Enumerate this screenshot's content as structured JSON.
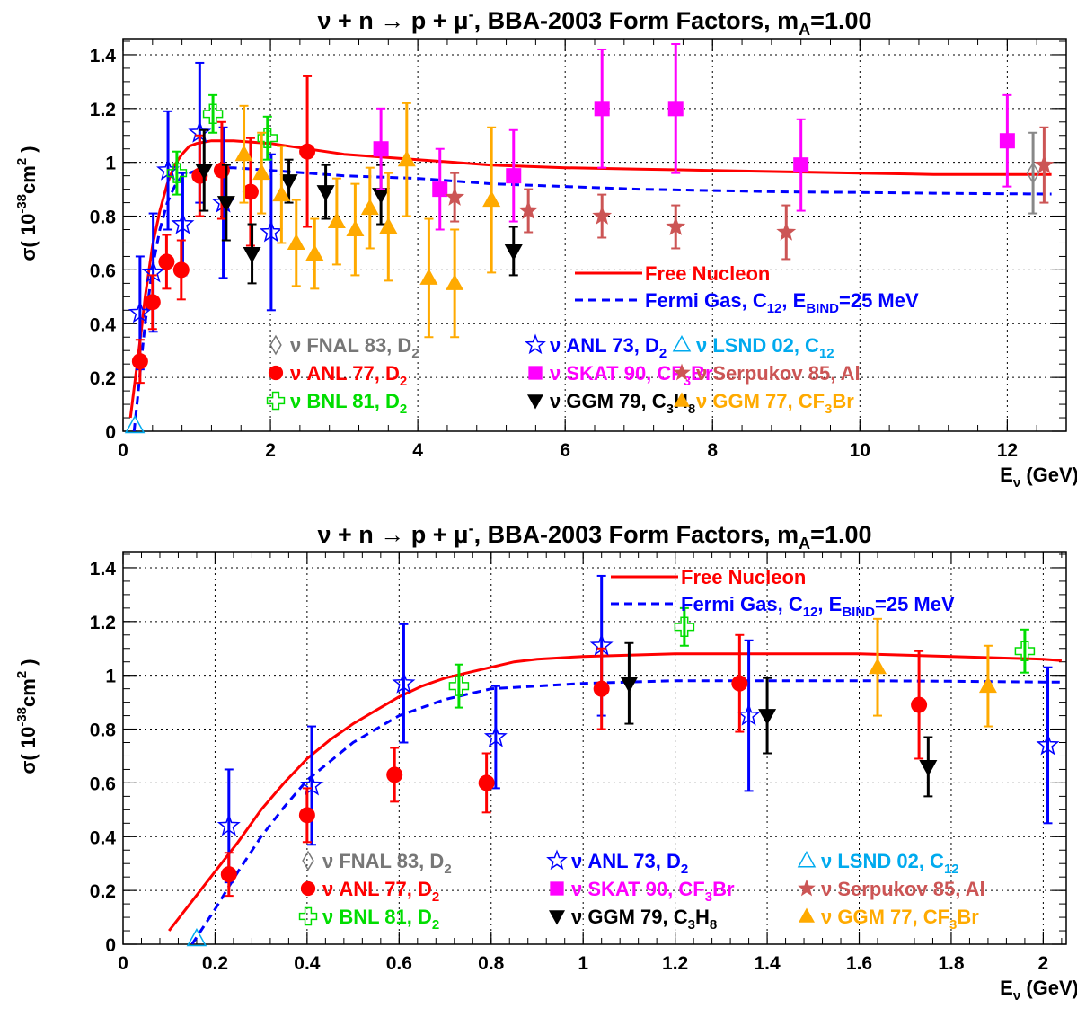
{
  "chart_data": [
    {
      "type": "scatter",
      "title": {
        "pre": "ν + n → p + μ",
        "sup": "-",
        "mid": ", BBA-2003 Form Factors, m",
        "sub": "A",
        "post": "=1.00"
      },
      "xlabel": {
        "main": "E",
        "sub": "ν",
        "post": " (GeV)"
      },
      "ylabel": {
        "pre": "σ( 10",
        "sup1": "-38",
        "mid": "cm",
        "sup2": "2",
        "post": " )"
      },
      "xlim": [
        0,
        12.8
      ],
      "ylim": [
        0,
        1.46
      ],
      "xticks": [
        0,
        2,
        4,
        6,
        8,
        10,
        12
      ],
      "yticks": [
        0,
        0.2,
        0.4,
        0.6,
        0.8,
        1,
        1.2,
        1.4
      ],
      "grid": true,
      "curves": [
        {
          "name": "Free Nucleon",
          "color": "#ff0000",
          "style": "solid",
          "x": [
            0.1,
            0.15,
            0.2,
            0.25,
            0.3,
            0.4,
            0.5,
            0.6,
            0.7,
            0.8,
            0.9,
            1.0,
            1.2,
            1.5,
            2.0,
            2.5,
            3.0,
            4.0,
            5.0,
            6.0,
            7.0,
            8.0,
            9.0,
            10.0,
            11.0,
            12.0,
            12.6
          ],
          "y": [
            0.05,
            0.16,
            0.27,
            0.38,
            0.5,
            0.69,
            0.82,
            0.92,
            0.99,
            1.03,
            1.06,
            1.07,
            1.08,
            1.08,
            1.07,
            1.05,
            1.03,
            1.01,
            0.99,
            0.98,
            0.975,
            0.97,
            0.965,
            0.96,
            0.955,
            0.955,
            0.955
          ]
        },
        {
          "name": "Fermi Gas, C12, EBIND=25 MeV",
          "color": "#0000ff",
          "style": "dashed",
          "x": [
            0.15,
            0.2,
            0.25,
            0.3,
            0.4,
            0.5,
            0.6,
            0.7,
            0.8,
            0.9,
            1.0,
            1.2,
            1.5,
            2.0,
            3.0,
            4.0,
            5.0,
            6.0,
            7.0,
            8.0,
            9.0,
            10.0,
            11.0,
            12.0,
            12.6
          ],
          "y": [
            0.0,
            0.13,
            0.27,
            0.4,
            0.61,
            0.75,
            0.85,
            0.91,
            0.95,
            0.96,
            0.97,
            0.98,
            0.98,
            0.97,
            0.95,
            0.94,
            0.92,
            0.91,
            0.9,
            0.895,
            0.89,
            0.888,
            0.885,
            0.883,
            0.882
          ]
        }
      ],
      "series": [
        {
          "key": "anl73",
          "color": "#0000ff",
          "marker": "star-open",
          "points": [
            [
              0.23,
              0.44,
              0.21
            ],
            [
              0.41,
              0.59,
              0.22
            ],
            [
              0.61,
              0.97,
              0.22
            ],
            [
              0.81,
              0.77,
              0.19
            ],
            [
              1.04,
              1.11,
              0.26
            ],
            [
              1.36,
              0.85,
              0.28
            ],
            [
              2.01,
              0.74,
              0.29
            ]
          ]
        },
        {
          "key": "anl77",
          "color": "#ff0000",
          "marker": "circle",
          "points": [
            [
              0.23,
              0.26,
              0.08
            ],
            [
              0.4,
              0.48,
              0.1
            ],
            [
              0.59,
              0.63,
              0.1
            ],
            [
              0.79,
              0.6,
              0.11
            ],
            [
              1.04,
              0.95,
              0.15
            ],
            [
              1.34,
              0.97,
              0.18
            ],
            [
              1.73,
              0.89,
              0.2
            ],
            [
              2.5,
              1.04,
              0.28
            ]
          ]
        },
        {
          "key": "bnl81",
          "color": "#00dd00",
          "marker": "cross-open",
          "points": [
            [
              0.73,
              0.96,
              0.08
            ],
            [
              1.22,
              1.18,
              0.07
            ],
            [
              1.96,
              1.09,
              0.08
            ]
          ]
        },
        {
          "key": "lsnd02",
          "color": "#00aaee",
          "marker": "triangle-open",
          "points": [
            [
              0.16,
              0.02,
              0.0
            ]
          ]
        },
        {
          "key": "fnal83",
          "color": "#888888",
          "marker": "diamond-open",
          "points": [
            [
              12.35,
              0.96,
              0.15
            ]
          ]
        },
        {
          "key": "ggm79",
          "color": "#000000",
          "marker": "triangle-down",
          "points": [
            [
              1.1,
              0.97,
              0.15
            ],
            [
              1.4,
              0.85,
              0.14
            ],
            [
              1.75,
              0.66,
              0.11
            ],
            [
              2.25,
              0.93,
              0.08
            ],
            [
              2.75,
              0.89,
              0.1
            ],
            [
              3.5,
              0.88,
              0.11
            ],
            [
              5.3,
              0.67,
              0.09
            ]
          ]
        },
        {
          "key": "ggm77",
          "color": "#ffaa00",
          "marker": "triangle-up",
          "points": [
            [
              1.64,
              1.03,
              0.18
            ],
            [
              1.88,
              0.96,
              0.15
            ],
            [
              2.15,
              0.88,
              0.18
            ],
            [
              2.35,
              0.7,
              0.16
            ],
            [
              2.6,
              0.66,
              0.13
            ],
            [
              2.9,
              0.78,
              0.16
            ],
            [
              3.15,
              0.75,
              0.17
            ],
            [
              3.35,
              0.83,
              0.15
            ],
            [
              3.6,
              0.76,
              0.2
            ],
            [
              3.85,
              1.01,
              0.21
            ],
            [
              4.15,
              0.57,
              0.22
            ],
            [
              4.5,
              0.55,
              0.2
            ],
            [
              5.0,
              0.86,
              0.27
            ]
          ]
        },
        {
          "key": "skat90",
          "color": "#ff00ff",
          "marker": "square",
          "points": [
            [
              3.5,
              1.05,
              0.15
            ],
            [
              4.3,
              0.9,
              0.15
            ],
            [
              5.3,
              0.95,
              0.17
            ],
            [
              6.5,
              1.2,
              0.22
            ],
            [
              7.5,
              1.2,
              0.24
            ],
            [
              9.2,
              0.99,
              0.17
            ],
            [
              12.0,
              1.08,
              0.17
            ]
          ]
        },
        {
          "key": "serpukov85",
          "color": "#cc5555",
          "marker": "star",
          "points": [
            [
              4.5,
              0.87,
              0.09
            ],
            [
              5.5,
              0.82,
              0.08
            ],
            [
              6.5,
              0.8,
              0.08
            ],
            [
              7.5,
              0.76,
              0.08
            ],
            [
              9.0,
              0.74,
              0.1
            ],
            [
              12.5,
              0.99,
              0.14
            ]
          ]
        }
      ]
    },
    {
      "type": "scatter",
      "title": {
        "pre": "ν + n → p + μ",
        "sup": "-",
        "mid": ", BBA-2003 Form Factors, m",
        "sub": "A",
        "post": "=1.00"
      },
      "xlabel": {
        "main": "E",
        "sub": "ν",
        "post": " (GeV)"
      },
      "ylabel": {
        "pre": "σ( 10",
        "sup1": "-38",
        "mid": "cm",
        "sup2": "2",
        "post": " )"
      },
      "xlim": [
        0,
        2.05
      ],
      "ylim": [
        0,
        1.46
      ],
      "xticks": [
        0,
        0.2,
        0.4,
        0.6,
        0.8,
        1,
        1.2,
        1.4,
        1.6,
        1.8,
        2
      ],
      "yticks": [
        0,
        0.2,
        0.4,
        0.6,
        0.8,
        1,
        1.2,
        1.4
      ],
      "grid": true,
      "curves": [
        {
          "name": "Free Nucleon",
          "color": "#ff0000",
          "style": "solid",
          "x": [
            0.1,
            0.15,
            0.2,
            0.25,
            0.3,
            0.35,
            0.4,
            0.45,
            0.5,
            0.55,
            0.6,
            0.65,
            0.7,
            0.75,
            0.8,
            0.85,
            0.9,
            0.95,
            1.0,
            1.1,
            1.2,
            1.4,
            1.6,
            1.8,
            2.0,
            2.04
          ],
          "y": [
            0.05,
            0.16,
            0.27,
            0.38,
            0.5,
            0.6,
            0.69,
            0.76,
            0.82,
            0.87,
            0.92,
            0.96,
            0.99,
            1.01,
            1.03,
            1.05,
            1.06,
            1.065,
            1.07,
            1.075,
            1.08,
            1.08,
            1.08,
            1.07,
            1.06,
            1.055
          ]
        },
        {
          "name": "Fermi Gas, C12, EBIND=25 MeV",
          "color": "#0000ff",
          "style": "dashed",
          "x": [
            0.15,
            0.2,
            0.25,
            0.3,
            0.35,
            0.4,
            0.45,
            0.5,
            0.55,
            0.6,
            0.65,
            0.7,
            0.75,
            0.8,
            0.85,
            0.9,
            1.0,
            1.1,
            1.2,
            1.4,
            1.6,
            1.8,
            2.0,
            2.04
          ],
          "y": [
            0.0,
            0.13,
            0.27,
            0.4,
            0.51,
            0.61,
            0.68,
            0.75,
            0.8,
            0.85,
            0.88,
            0.91,
            0.93,
            0.95,
            0.955,
            0.96,
            0.97,
            0.975,
            0.98,
            0.98,
            0.98,
            0.978,
            0.975,
            0.975
          ]
        }
      ],
      "series": [
        {
          "key": "anl73",
          "color": "#0000ff",
          "marker": "star-open",
          "points": [
            [
              0.23,
              0.44,
              0.21
            ],
            [
              0.41,
              0.59,
              0.22
            ],
            [
              0.61,
              0.97,
              0.22
            ],
            [
              0.81,
              0.77,
              0.19
            ],
            [
              1.04,
              1.11,
              0.26
            ],
            [
              1.36,
              0.85,
              0.28
            ],
            [
              2.01,
              0.74,
              0.29
            ]
          ]
        },
        {
          "key": "anl77",
          "color": "#ff0000",
          "marker": "circle",
          "points": [
            [
              0.23,
              0.26,
              0.08
            ],
            [
              0.4,
              0.48,
              0.1
            ],
            [
              0.59,
              0.63,
              0.1
            ],
            [
              0.79,
              0.6,
              0.11
            ],
            [
              1.04,
              0.95,
              0.15
            ],
            [
              1.34,
              0.97,
              0.18
            ],
            [
              1.73,
              0.89,
              0.2
            ]
          ]
        },
        {
          "key": "bnl81",
          "color": "#00dd00",
          "marker": "cross-open",
          "points": [
            [
              0.73,
              0.96,
              0.08
            ],
            [
              1.22,
              1.18,
              0.07
            ],
            [
              1.96,
              1.09,
              0.08
            ]
          ]
        },
        {
          "key": "lsnd02",
          "color": "#00aaee",
          "marker": "triangle-open",
          "points": [
            [
              0.16,
              0.02,
              0.0
            ]
          ]
        },
        {
          "key": "ggm79",
          "color": "#000000",
          "marker": "triangle-down",
          "points": [
            [
              1.1,
              0.97,
              0.15
            ],
            [
              1.4,
              0.85,
              0.14
            ],
            [
              1.75,
              0.66,
              0.11
            ]
          ]
        },
        {
          "key": "ggm77",
          "color": "#ffaa00",
          "marker": "triangle-up",
          "points": [
            [
              1.64,
              1.03,
              0.18
            ],
            [
              1.88,
              0.96,
              0.15
            ]
          ]
        }
      ]
    }
  ],
  "legend_entries": [
    {
      "key": "fnal83",
      "marker": "diamond-open",
      "color": "#777777",
      "label": "ν FNAL 83, D",
      "sub": "2",
      "post": ""
    },
    {
      "key": "anl77",
      "marker": "circle",
      "color": "#ff0000",
      "label": "ν ANL 77, D",
      "sub": "2",
      "post": ""
    },
    {
      "key": "bnl81",
      "marker": "cross-open",
      "color": "#00dd00",
      "label": "ν BNL 81, D",
      "sub": "2",
      "post": ""
    },
    {
      "key": "anl73",
      "marker": "star-open",
      "color": "#0000ff",
      "label": "ν ANL 73, D",
      "sub": "2",
      "post": ""
    },
    {
      "key": "skat90",
      "marker": "square",
      "color": "#ff00ff",
      "label": "ν SKAT 90, CF",
      "sub": "3",
      "post": "Br"
    },
    {
      "key": "ggm79",
      "marker": "triangle-down",
      "color": "#000000",
      "label": "ν GGM 79, C",
      "sub": "3",
      "post": "H",
      "sub2": "8"
    },
    {
      "key": "lsnd02",
      "marker": "triangle-open",
      "color": "#00aaee",
      "label": "ν LSND 02, C",
      "sub": "12",
      "post": ""
    },
    {
      "key": "serpukov85",
      "marker": "star",
      "color": "#cc5555",
      "label": "ν Serpukov 85, Al",
      "sub": "",
      "post": ""
    },
    {
      "key": "ggm77",
      "marker": "triangle-up",
      "color": "#ffaa00",
      "label": "ν GGM 77, CF",
      "sub": "3",
      "post": "Br"
    }
  ],
  "curve_legend": [
    {
      "label": "Free Nucleon",
      "color": "#ff0000",
      "style": "solid"
    },
    {
      "label": "Fermi Gas, C",
      "sub": "12",
      "mid": ", E",
      "sub2": "BIND",
      "post": "=25 MeV",
      "color": "#0000ff",
      "style": "dashed"
    }
  ]
}
